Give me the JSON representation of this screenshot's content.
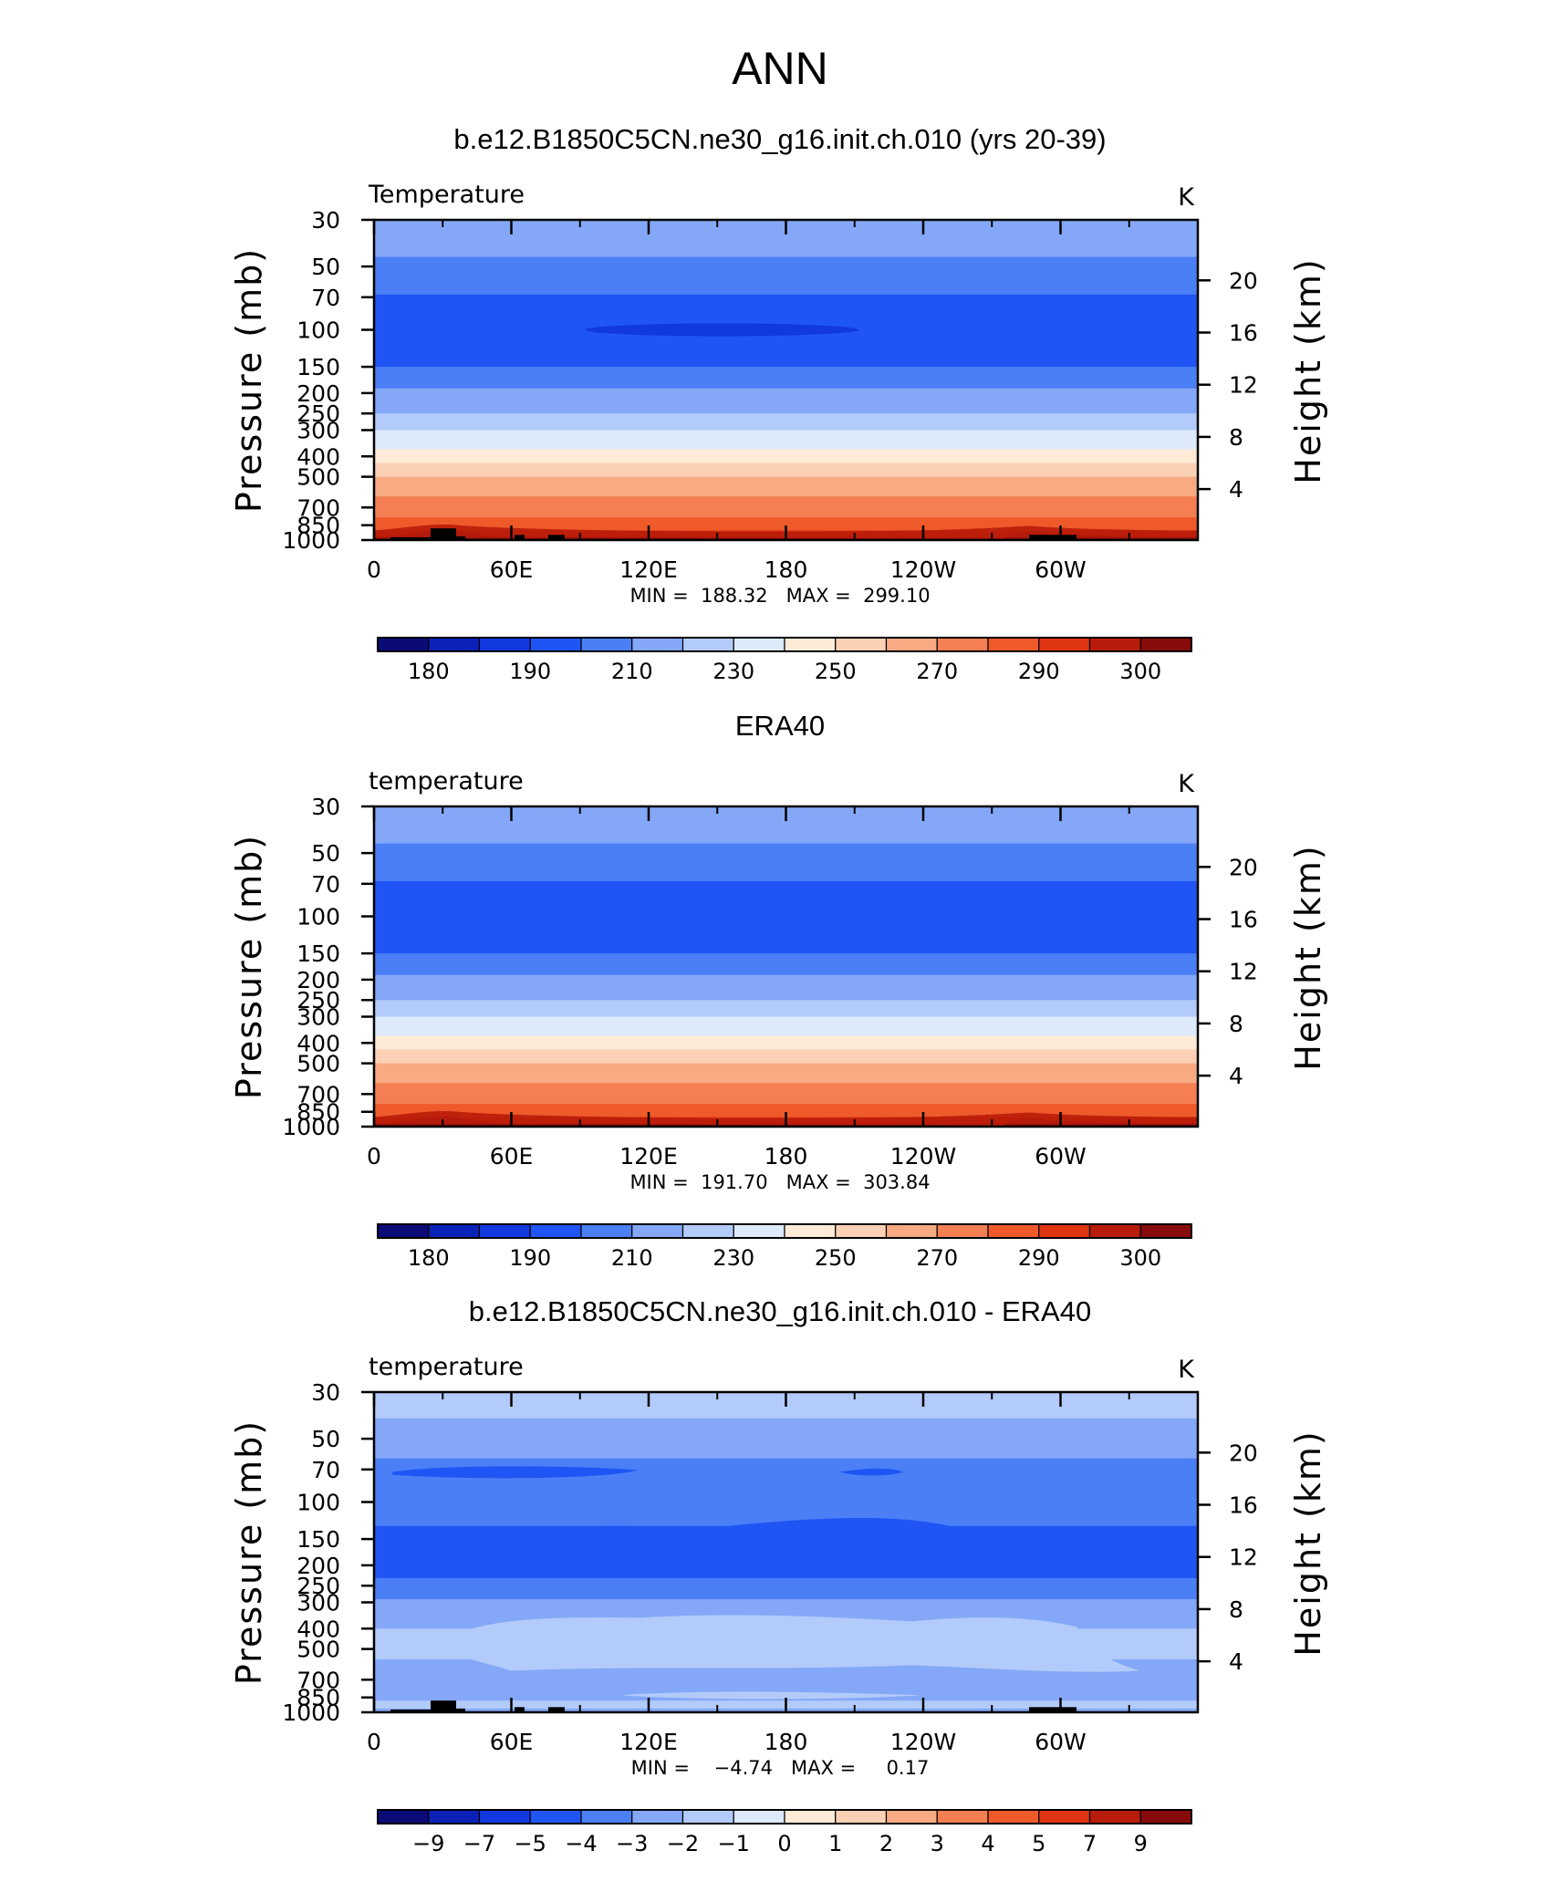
{
  "figure_title": "ANN",
  "chart_data": [
    {
      "type": "heatmap",
      "title": "b.e12.B1850C5CN.ne30_g16.init.ch.010 (yrs 20-39)",
      "left_label": "Temperature",
      "units": "K",
      "ylabel": "Pressure  (mb)",
      "ylabel_right": "Height  (km)",
      "x_ticks": [
        "0",
        "60E",
        "120E",
        "180",
        "120W",
        "60W"
      ],
      "y_ticks": [
        "30",
        "50",
        "70",
        "100",
        "150",
        "200",
        "250",
        "300",
        "400",
        "500",
        "700",
        "850",
        "1000"
      ],
      "y_ticks_right": [
        "20",
        "16",
        "12",
        "8",
        "4"
      ],
      "min_max_text": "MIN =  188.32   MAX =  299.10",
      "colorbar_labels": [
        "180",
        "190",
        "210",
        "230",
        "250",
        "270",
        "290",
        "300"
      ],
      "ylim": [
        1000,
        30
      ],
      "xlim": [
        0,
        360
      ],
      "contour_levels_K": [
        180,
        185,
        190,
        200,
        210,
        220,
        230,
        240,
        250,
        260,
        270,
        280,
        290,
        295,
        300
      ],
      "bands_by_pressure": [
        {
          "p": 30,
          "class": 5
        },
        {
          "p": 45,
          "class": 4
        },
        {
          "p": 68,
          "class": 3
        },
        {
          "p": 150,
          "class": 4
        },
        {
          "p": 190,
          "class": 5
        },
        {
          "p": 250,
          "class": 6
        },
        {
          "p": 300,
          "class": 7
        },
        {
          "p": 370,
          "class": 8
        },
        {
          "p": 430,
          "class": 9
        },
        {
          "p": 500,
          "class": 10
        },
        {
          "p": 620,
          "class": 11
        },
        {
          "p": 780,
          "class": 12
        },
        {
          "p": 900,
          "class": 13
        },
        {
          "p": 960,
          "class": 14
        }
      ],
      "cold_core": {
        "lon": 152,
        "p": 100,
        "value_range": "185-190"
      }
    },
    {
      "type": "heatmap",
      "title": "ERA40",
      "left_label": "temperature",
      "units": "K",
      "ylabel": "Pressure  (mb)",
      "ylabel_right": "Height  (km)",
      "x_ticks": [
        "0",
        "60E",
        "120E",
        "180",
        "120W",
        "60W"
      ],
      "y_ticks": [
        "30",
        "50",
        "70",
        "100",
        "150",
        "200",
        "250",
        "300",
        "400",
        "500",
        "700",
        "850",
        "1000"
      ],
      "y_ticks_right": [
        "20",
        "16",
        "12",
        "8",
        "4"
      ],
      "min_max_text": "MIN =  191.70   MAX =  303.84",
      "colorbar_labels": [
        "180",
        "190",
        "210",
        "230",
        "250",
        "270",
        "290",
        "300"
      ],
      "ylim": [
        1000,
        30
      ],
      "xlim": [
        0,
        360
      ],
      "contour_levels_K": [
        180,
        185,
        190,
        200,
        210,
        220,
        230,
        240,
        250,
        260,
        270,
        280,
        290,
        295,
        300
      ],
      "bands_by_pressure": [
        {
          "p": 30,
          "class": 5
        },
        {
          "p": 45,
          "class": 4
        },
        {
          "p": 68,
          "class": 3
        },
        {
          "p": 150,
          "class": 4
        },
        {
          "p": 190,
          "class": 5
        },
        {
          "p": 250,
          "class": 6
        },
        {
          "p": 300,
          "class": 7
        },
        {
          "p": 370,
          "class": 8
        },
        {
          "p": 430,
          "class": 9
        },
        {
          "p": 500,
          "class": 10
        },
        {
          "p": 620,
          "class": 11
        },
        {
          "p": 780,
          "class": 12
        },
        {
          "p": 900,
          "class": 13
        },
        {
          "p": 960,
          "class": 14
        }
      ]
    },
    {
      "type": "heatmap",
      "title": "b.e12.B1850C5CN.ne30_g16.init.ch.010 - ERA40",
      "left_label": "temperature",
      "units": "K",
      "ylabel": "Pressure  (mb)",
      "ylabel_right": "Height  (km)",
      "x_ticks": [
        "0",
        "60E",
        "120E",
        "180",
        "120W",
        "60W"
      ],
      "y_ticks": [
        "30",
        "50",
        "70",
        "100",
        "150",
        "200",
        "250",
        "300",
        "400",
        "500",
        "700",
        "850",
        "1000"
      ],
      "y_ticks_right": [
        "20",
        "16",
        "12",
        "8",
        "4"
      ],
      "min_max_text": "MIN =    −4.74   MAX =     0.17",
      "colorbar_labels": [
        "−9",
        "−7",
        "−5",
        "−4",
        "−3",
        "−2",
        "−1",
        "0",
        "1",
        "2",
        "3",
        "4",
        "5",
        "7",
        "9"
      ],
      "ylim": [
        1000,
        30
      ],
      "xlim": [
        0,
        360
      ],
      "contour_levels_K": [
        -9,
        -7,
        -5,
        -4,
        -3,
        -2,
        -1,
        0,
        1,
        2,
        3,
        4,
        5,
        7,
        9
      ],
      "bands_by_pressure": [
        {
          "p": 30,
          "class": 6
        },
        {
          "p": 40,
          "class": 5
        },
        {
          "p": 62,
          "class": 4
        },
        {
          "p": 75,
          "class": 4
        },
        {
          "p": 110,
          "class": 4
        },
        {
          "p": 130,
          "class": 3
        },
        {
          "p": 230,
          "class": 4
        },
        {
          "p": 290,
          "class": 5
        },
        {
          "p": 400,
          "class": 6
        },
        {
          "p": 560,
          "class": 5
        },
        {
          "p": 820,
          "class": 5
        },
        {
          "p": 880,
          "class": 6
        },
        {
          "p": 960,
          "class": 5
        }
      ],
      "notable_features": [
        {
          "lon": 120,
          "p": 72,
          "value_range": "-4 to -3"
        },
        {
          "lon": 180,
          "p": 150,
          "value_range": "-4 to -3"
        },
        {
          "lon": 340,
          "p": 205,
          "value_range": "-4 to -3"
        }
      ]
    }
  ],
  "colors": {
    "palette": [
      "#0b0b78",
      "#0a22b8",
      "#1238e0",
      "#1f55f4",
      "#4a7ff6",
      "#84a8f7",
      "#b3cbfa",
      "#ddeafc",
      "#fdebd8",
      "#fbd0b5",
      "#f8aa83",
      "#f47f53",
      "#ef5a2b",
      "#e03512",
      "#b81c0a",
      "#870b0b"
    ],
    "topography": "#000000",
    "axis": "#000000"
  }
}
